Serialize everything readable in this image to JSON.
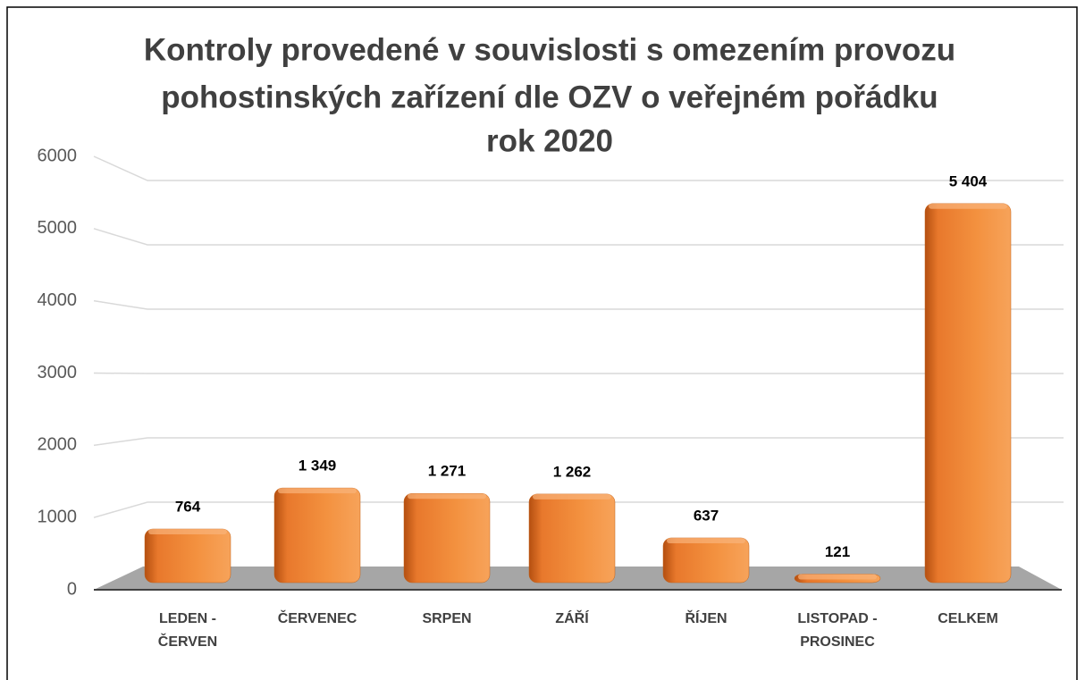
{
  "chart_data": {
    "type": "bar3d",
    "title": [
      "Kontroly provedené v souvislosti s omezením provozu",
      "pohostinských zařízení dle OZV o veřejném pořádku",
      "rok 2020"
    ],
    "categories": [
      "LEDEN - ČERVEN",
      "ČERVENEC",
      "SRPEN",
      "ZÁŘÍ",
      "ŘÍJEN",
      "LISTOPAD - PROSINEC",
      "CELKEM"
    ],
    "values": [
      764,
      1349,
      1271,
      1262,
      637,
      121,
      5404
    ],
    "value_labels": [
      "764",
      "1 349",
      "1 271",
      "1 262",
      "637",
      "121",
      "5 404"
    ],
    "color": "#f08a3c",
    "ylim": [
      0,
      6000
    ],
    "yticks": [
      0,
      1000,
      2000,
      3000,
      4000,
      5000,
      6000
    ],
    "grid": true
  }
}
